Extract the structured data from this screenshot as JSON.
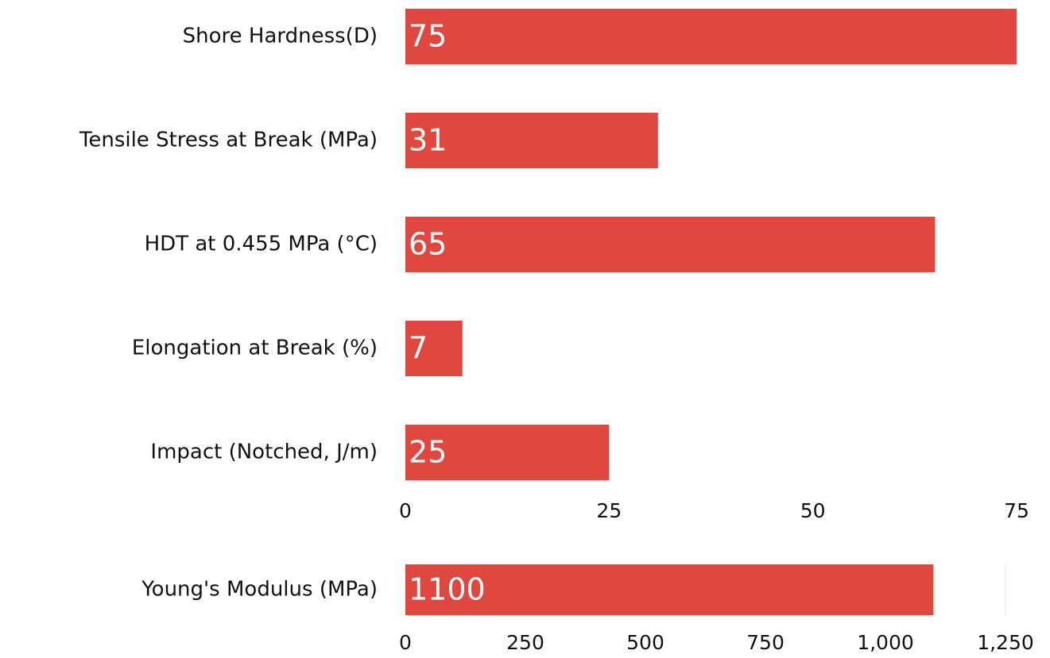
{
  "chart_data": [
    {
      "type": "bar",
      "orientation": "horizontal",
      "color": "#e0473e",
      "categories": [
        "Shore Hardness(D)",
        "Tensile Stress at Break (MPa)",
        "HDT at 0.455 MPa (°C)",
        "Elongation at Break (%)",
        "Impact (Notched, J/m)"
      ],
      "values": [
        75,
        31,
        65,
        7,
        25
      ],
      "xlim": [
        0,
        75
      ],
      "xticks": [
        0,
        25,
        50,
        75
      ],
      "grid": false
    },
    {
      "type": "bar",
      "orientation": "horizontal",
      "color": "#e0473e",
      "categories": [
        "Young's Modulus (MPa)"
      ],
      "values": [
        1100
      ],
      "xlim": [
        0,
        1250
      ],
      "xticks": [
        0,
        250,
        500,
        750,
        {
          "value": 1000,
          "label": "1,000"
        },
        {
          "value": 1250,
          "label": "1,250"
        }
      ],
      "grid": false
    }
  ]
}
